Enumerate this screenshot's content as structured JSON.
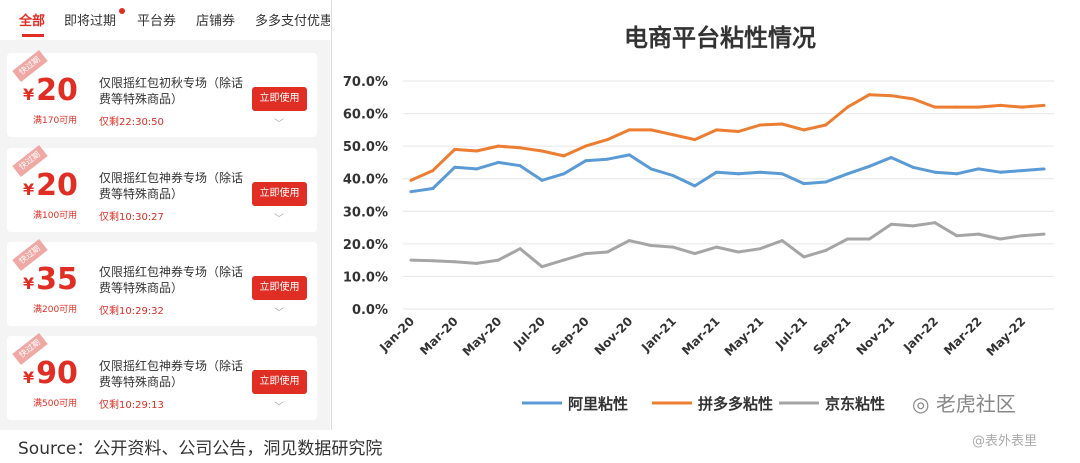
{
  "tabs": [
    "全部",
    "即将过期",
    "平台券",
    "店铺券",
    "多多支付优惠"
  ],
  "coupons": [
    {
      "badge": "快过期",
      "amount": "20",
      "condition": "满170可用",
      "title": "仅限摇红包初秋专场（除话费等特殊商品）",
      "time": "仅剩22:30:50",
      "button": "立即使用"
    },
    {
      "badge": "快过期",
      "amount": "20",
      "condition": "满100可用",
      "title": "仅限摇红包神券专场（除话费等特殊商品）",
      "time": "仅剩10:30:27",
      "button": "立即使用"
    },
    {
      "badge": "快过期",
      "amount": "35",
      "condition": "满200可用",
      "title": "仅限摇红包神券专场（除话费等特殊商品）",
      "time": "仅剩10:29:32",
      "button": "立即使用"
    },
    {
      "badge": "快过期",
      "amount": "90",
      "condition": "满500可用",
      "title": "仅限摇红包神券专场（除话费等特殊商品）",
      "time": "仅剩10:29:13",
      "button": "立即使用"
    }
  ],
  "currency": "¥",
  "chart_data": {
    "type": "line",
    "title": "电商平台粘性情况",
    "ylim": [
      0,
      70
    ],
    "y_ticks": [
      "0.0%",
      "10.0%",
      "20.0%",
      "30.0%",
      "40.0%",
      "50.0%",
      "60.0%",
      "70.0%"
    ],
    "x": [
      "Jan-20",
      "Feb-20",
      "Mar-20",
      "Apr-20",
      "May-20",
      "Jun-20",
      "Jul-20",
      "Aug-20",
      "Sep-20",
      "Oct-20",
      "Nov-20",
      "Dec-20",
      "Jan-21",
      "Feb-21",
      "Mar-21",
      "Apr-21",
      "May-21",
      "Jun-21",
      "Jul-21",
      "Aug-21",
      "Sep-21",
      "Oct-21",
      "Nov-21",
      "Dec-21",
      "Jan-22",
      "Feb-22",
      "Mar-22",
      "Apr-22",
      "May-22",
      "Jun-22"
    ],
    "x_tick_labels": [
      "Jan-20",
      "Mar-20",
      "May-20",
      "Jul-20",
      "Sep-20",
      "Nov-20",
      "Jan-21",
      "Mar-21",
      "May-21",
      "Jul-21",
      "Sep-21",
      "Nov-21",
      "Jan-22",
      "Mar-22",
      "May-22"
    ],
    "grid": true,
    "legend_position": "bottom",
    "series": [
      {
        "name": "阿里粘性",
        "color": "#5b9bd5",
        "values": [
          36,
          37,
          43.5,
          43,
          45,
          44,
          39.5,
          41.5,
          45.5,
          46,
          47.3,
          43,
          41,
          37.8,
          42,
          41.5,
          42,
          41.5,
          38.5,
          39,
          41.5,
          43.8,
          46.5,
          43.5,
          42,
          41.5,
          43,
          42,
          42.5,
          43
        ]
      },
      {
        "name": "拼多多粘性",
        "color": "#ed7d31",
        "values": [
          39.5,
          42.5,
          49,
          48.5,
          50,
          49.5,
          48.5,
          47,
          50,
          52,
          55,
          55,
          53.5,
          52,
          55,
          54.5,
          56.5,
          56.8,
          55,
          56.5,
          62,
          65.8,
          65.5,
          64.5,
          62,
          62,
          62,
          62.5,
          62,
          62.5
        ]
      },
      {
        "name": "京东粘性",
        "color": "#a5a5a5",
        "values": [
          15,
          14.8,
          14.5,
          14,
          15,
          18.5,
          13,
          15,
          17,
          17.5,
          21,
          19.5,
          19,
          17,
          19,
          17.5,
          18.5,
          21,
          16,
          18,
          21.5,
          21.5,
          26,
          25.5,
          26.5,
          22.5,
          23,
          21.5,
          22.5,
          23
        ]
      }
    ]
  },
  "source": "Source：公开资料、公司公告，洞见数据研究院",
  "watermark_logo": "老虎社区",
  "watermark_handle": "@表外表里"
}
